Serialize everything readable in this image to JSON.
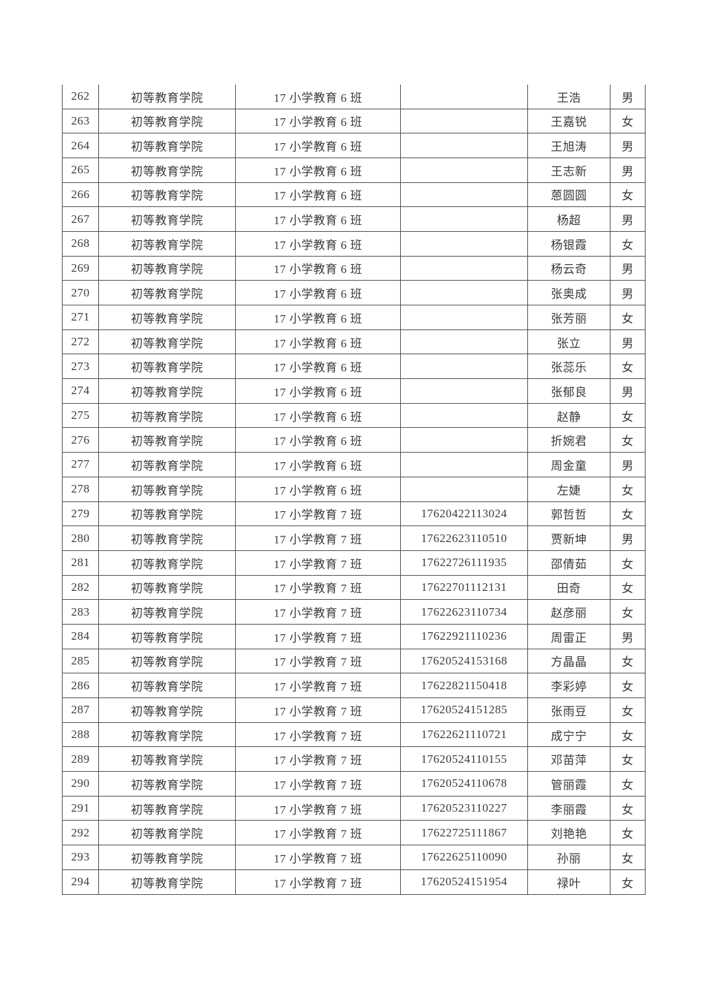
{
  "page": {
    "background_color": "#ffffff",
    "text_color": "#3a3a3a",
    "border_color": "#4e4e4e"
  },
  "table": {
    "rows": [
      {
        "no": "262",
        "college": "初等教育学院",
        "class": "17 小学教育 6 班",
        "student_id": "",
        "name": "王浩",
        "gender": "男"
      },
      {
        "no": "263",
        "college": "初等教育学院",
        "class": "17 小学教育 6 班",
        "student_id": "",
        "name": "王嘉锐",
        "gender": "女"
      },
      {
        "no": "264",
        "college": "初等教育学院",
        "class": "17 小学教育 6 班",
        "student_id": "",
        "name": "王旭涛",
        "gender": "男"
      },
      {
        "no": "265",
        "college": "初等教育学院",
        "class": "17 小学教育 6 班",
        "student_id": "",
        "name": "王志新",
        "gender": "男"
      },
      {
        "no": "266",
        "college": "初等教育学院",
        "class": "17 小学教育 6 班",
        "student_id": "",
        "name": "蒽圆圆",
        "gender": "女"
      },
      {
        "no": "267",
        "college": "初等教育学院",
        "class": "17 小学教育 6 班",
        "student_id": "",
        "name": "杨超",
        "gender": "男"
      },
      {
        "no": "268",
        "college": "初等教育学院",
        "class": "17 小学教育 6 班",
        "student_id": "",
        "name": "杨银霞",
        "gender": "女"
      },
      {
        "no": "269",
        "college": "初等教育学院",
        "class": "17 小学教育 6 班",
        "student_id": "",
        "name": "杨云奇",
        "gender": "男"
      },
      {
        "no": "270",
        "college": "初等教育学院",
        "class": "17 小学教育 6 班",
        "student_id": "",
        "name": "张奥成",
        "gender": "男"
      },
      {
        "no": "271",
        "college": "初等教育学院",
        "class": "17 小学教育 6 班",
        "student_id": "",
        "name": "张芳丽",
        "gender": "女"
      },
      {
        "no": "272",
        "college": "初等教育学院",
        "class": "17 小学教育 6 班",
        "student_id": "",
        "name": "张立",
        "gender": "男"
      },
      {
        "no": "273",
        "college": "初等教育学院",
        "class": "17 小学教育 6 班",
        "student_id": "",
        "name": "张蕊乐",
        "gender": "女"
      },
      {
        "no": "274",
        "college": "初等教育学院",
        "class": "17 小学教育 6 班",
        "student_id": "",
        "name": "张郁良",
        "gender": "男"
      },
      {
        "no": "275",
        "college": "初等教育学院",
        "class": "17 小学教育 6 班",
        "student_id": "",
        "name": "赵静",
        "gender": "女"
      },
      {
        "no": "276",
        "college": "初等教育学院",
        "class": "17 小学教育 6 班",
        "student_id": "",
        "name": "折婉君",
        "gender": "女"
      },
      {
        "no": "277",
        "college": "初等教育学院",
        "class": "17 小学教育 6 班",
        "student_id": "",
        "name": "周金童",
        "gender": "男"
      },
      {
        "no": "278",
        "college": "初等教育学院",
        "class": "17 小学教育 6 班",
        "student_id": "",
        "name": "左婕",
        "gender": "女"
      },
      {
        "no": "279",
        "college": "初等教育学院",
        "class": "17 小学教育 7 班",
        "student_id": "17620422113024",
        "name": "郭哲哲",
        "gender": "女"
      },
      {
        "no": "280",
        "college": "初等教育学院",
        "class": "17 小学教育 7 班",
        "student_id": "17622623110510",
        "name": "贾新坤",
        "gender": "男"
      },
      {
        "no": "281",
        "college": "初等教育学院",
        "class": "17 小学教育 7 班",
        "student_id": "17622726111935",
        "name": "邵倩茹",
        "gender": "女"
      },
      {
        "no": "282",
        "college": "初等教育学院",
        "class": "17 小学教育 7 班",
        "student_id": "17622701112131",
        "name": "田奇",
        "gender": "女"
      },
      {
        "no": "283",
        "college": "初等教育学院",
        "class": "17 小学教育 7 班",
        "student_id": "17622623110734",
        "name": "赵彦丽",
        "gender": "女"
      },
      {
        "no": "284",
        "college": "初等教育学院",
        "class": "17 小学教育 7 班",
        "student_id": "17622921110236",
        "name": "周雷正",
        "gender": "男"
      },
      {
        "no": "285",
        "college": "初等教育学院",
        "class": "17 小学教育 7 班",
        "student_id": "17620524153168",
        "name": "方晶晶",
        "gender": "女"
      },
      {
        "no": "286",
        "college": "初等教育学院",
        "class": "17 小学教育 7 班",
        "student_id": "17622821150418",
        "name": "李彩婷",
        "gender": "女"
      },
      {
        "no": "287",
        "college": "初等教育学院",
        "class": "17 小学教育 7 班",
        "student_id": "17620524151285",
        "name": "张雨豆",
        "gender": "女"
      },
      {
        "no": "288",
        "college": "初等教育学院",
        "class": "17 小学教育 7 班",
        "student_id": "17622621110721",
        "name": "成宁宁",
        "gender": "女"
      },
      {
        "no": "289",
        "college": "初等教育学院",
        "class": "17 小学教育 7 班",
        "student_id": "17620524110155",
        "name": "邓苗萍",
        "gender": "女"
      },
      {
        "no": "290",
        "college": "初等教育学院",
        "class": "17 小学教育 7 班",
        "student_id": "17620524110678",
        "name": "管丽霞",
        "gender": "女"
      },
      {
        "no": "291",
        "college": "初等教育学院",
        "class": "17 小学教育 7 班",
        "student_id": "17620523110227",
        "name": "李丽霞",
        "gender": "女"
      },
      {
        "no": "292",
        "college": "初等教育学院",
        "class": "17 小学教育 7 班",
        "student_id": "17622725111867",
        "name": "刘艳艳",
        "gender": "女"
      },
      {
        "no": "293",
        "college": "初等教育学院",
        "class": "17 小学教育 7 班",
        "student_id": "17622625110090",
        "name": "孙丽",
        "gender": "女"
      },
      {
        "no": "294",
        "college": "初等教育学院",
        "class": "17 小学教育 7 班",
        "student_id": "17620524151954",
        "name": "禄叶",
        "gender": "女"
      }
    ]
  }
}
